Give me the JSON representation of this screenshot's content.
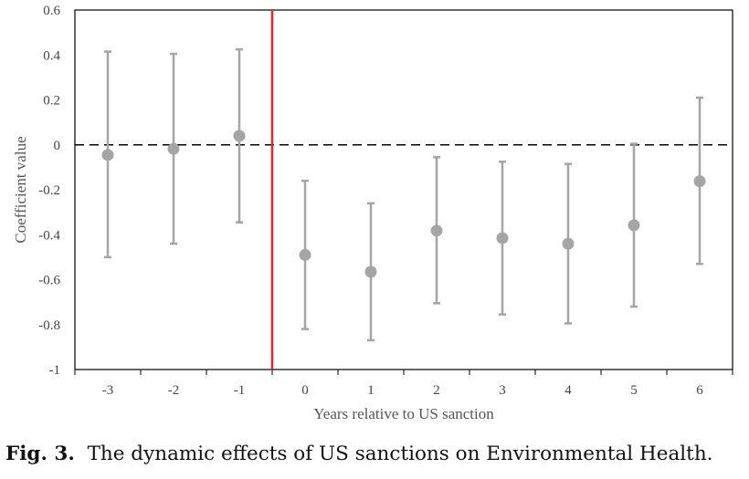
{
  "chart_data": {
    "type": "scatter",
    "title": "",
    "xlabel": "Years relative to US sanction",
    "ylabel": "Coefficient value",
    "categories": [
      "-3",
      "-2",
      "-1",
      "0",
      "1",
      "2",
      "3",
      "4",
      "5",
      "6"
    ],
    "ylim": [
      -1,
      0.6
    ],
    "yticks": [
      "0.6",
      "0.4",
      "0.2",
      "0",
      "-0.2",
      "-0.4",
      "-0.6",
      "-0.8",
      "-1"
    ],
    "series": [
      {
        "estimates": [
          -0.045,
          -0.018,
          0.04,
          -0.49,
          -0.565,
          -0.382,
          -0.415,
          -0.44,
          -0.358,
          -0.162
        ],
        "ci_upper": [
          0.415,
          0.405,
          0.425,
          -0.16,
          -0.26,
          -0.055,
          -0.075,
          -0.085,
          0.005,
          0.21
        ],
        "ci_lower": [
          -0.5,
          -0.44,
          -0.345,
          -0.82,
          -0.87,
          -0.705,
          -0.755,
          -0.795,
          -0.72,
          -0.53
        ]
      }
    ],
    "reference_lines": {
      "horizontal_y": 0,
      "horizontal_style": "dashed",
      "vertical_between": [
        "-1",
        "0"
      ],
      "vertical_color": "#e8262a"
    },
    "grid": false,
    "legend": "none",
    "colors": {
      "marker": "#a5a5a5",
      "errorbar": "#a5a5a5",
      "zero_line": "#000000",
      "frame": "#000000"
    }
  },
  "caption": {
    "label": "Fig. 3.",
    "text": "The dynamic effects of US sanctions on Environmental Health."
  }
}
